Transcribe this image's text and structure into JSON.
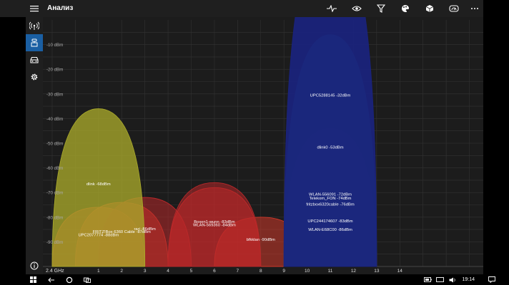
{
  "header": {
    "title": "Анализ"
  },
  "toolbar": {
    "icons": [
      "pulse-icon",
      "eye-icon",
      "filter-icon",
      "palette-icon",
      "cube-icon",
      "gauge-icon",
      "more-icon"
    ]
  },
  "sidebar": {
    "items": [
      {
        "icon": "wifi-signal-icon",
        "active": false
      },
      {
        "icon": "router-icon",
        "active": true
      },
      {
        "icon": "car-icon",
        "active": false
      },
      {
        "icon": "gear-icon",
        "active": false
      }
    ],
    "info_icon": "info-icon"
  },
  "taskbar": {
    "clock": "19:14"
  },
  "colors": {
    "accent": "#1a5fa3",
    "background": "#1c1c1c",
    "grid": "#333333"
  },
  "chart_data": {
    "type": "area",
    "band_label": "2.4 GHz",
    "x": {
      "ticks": [
        1,
        2,
        3,
        4,
        5,
        6,
        7,
        8,
        9,
        10,
        11,
        12,
        13,
        14
      ],
      "range": [
        -1.4,
        17.6
      ]
    },
    "y": {
      "tick_labels": [
        "-10 dBm",
        "-20 dBm",
        "-30 dBm",
        "-40 dBm",
        "-50 dBm",
        "-60 dBm",
        "-70 dBm",
        "-80 dBm",
        "-90 dBm"
      ],
      "tick_values": [
        -10,
        -20,
        -30,
        -40,
        -50,
        -60,
        -70,
        -80,
        -90
      ],
      "range": [
        -100,
        0
      ]
    },
    "grid": true,
    "series": [
      {
        "name": "dlink -68dBm",
        "channel": 1,
        "level": -68,
        "color": "#a8a82a",
        "opacity": 0.78,
        "label_y": -67
      },
      {
        "name": "FRITZ!Box 6360 Cable -87dBm",
        "channel": 2,
        "level": -87,
        "color": "#d2382a",
        "opacity": 0.55,
        "label_y": -86.4
      },
      {
        "name": "UPC2077774 -88dBm",
        "channel": 1,
        "level": -88,
        "color": "#d2382a",
        "opacity": 0.55,
        "label_y": -87.7
      },
      {
        "name": "rari -86dBm",
        "channel": 3,
        "level": -86,
        "color": "#b8282a",
        "opacity": 0.55,
        "label_y": -85.3
      },
      {
        "name": "Boxen1-wunn -83dBm",
        "channel": 6,
        "level": -83,
        "color": "#b8282a",
        "opacity": 0.55,
        "label_y": -82.4
      },
      {
        "name": "WLAN-569360 -84dBm",
        "channel": 6,
        "level": -84,
        "color": "#c62828",
        "opacity": 0.55,
        "label_y": -83.7
      },
      {
        "name": "bfkklan -90dBm",
        "channel": 8,
        "level": -90,
        "color": "#d2382a",
        "opacity": 0.55,
        "label_y": -89.6
      },
      {
        "name": "UPC5288145 -32dBm",
        "channel": 11,
        "level": -32,
        "color": "#1a237e",
        "opacity": 0.92,
        "label_y": -31
      },
      {
        "name": "dlink0 -53dBm",
        "channel": 11,
        "level": -53,
        "color": "#1e5f76",
        "opacity": 0.88,
        "label_y": -52.1
      },
      {
        "name": "WLAN-556091 -72dBm",
        "channel": 11,
        "level": -72,
        "color": "#7a2a40",
        "opacity": 0.75,
        "label_y": -71.3
      },
      {
        "name": "Telekom_FON -74dBm",
        "channel": 11,
        "level": -74,
        "color": "#8e2838",
        "opacity": 0.75,
        "label_y": -72.8
      },
      {
        "name": "fritzbox6320cable -76dBm",
        "channel": 11,
        "level": -76,
        "color": "#a8283a",
        "opacity": 0.75,
        "label_y": -75.3
      },
      {
        "name": "UPC244174607 -83dBm",
        "channel": 11,
        "level": -83,
        "color": "#d83028",
        "opacity": 0.8,
        "label_y": -82.1
      },
      {
        "name": "WLAN-E68C00 -86dBm",
        "channel": 11,
        "level": -86,
        "color": "#e83228",
        "opacity": 0.85,
        "label_y": -85.6
      }
    ]
  }
}
